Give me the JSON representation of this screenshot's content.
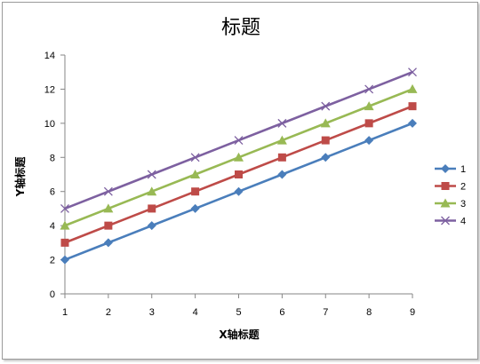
{
  "chart_data": {
    "type": "line",
    "title": "标题",
    "xlabel": "X轴标题",
    "ylabel": "Y轴标题",
    "x": [
      1,
      2,
      3,
      4,
      5,
      6,
      7,
      8,
      9
    ],
    "ylim": [
      0,
      14
    ],
    "yticks": [
      0,
      2,
      4,
      6,
      8,
      10,
      12,
      14
    ],
    "grid": false,
    "legend_position": "right",
    "series": [
      {
        "name": "1",
        "values": [
          2,
          3,
          4,
          5,
          6,
          7,
          8,
          9,
          10
        ],
        "color": "#4a7ebb",
        "marker": "diamond"
      },
      {
        "name": "2",
        "values": [
          3,
          4,
          5,
          6,
          7,
          8,
          9,
          10,
          11
        ],
        "color": "#be4b48",
        "marker": "square"
      },
      {
        "name": "3",
        "values": [
          4,
          5,
          6,
          7,
          8,
          9,
          10,
          11,
          12
        ],
        "color": "#98b954",
        "marker": "triangle"
      },
      {
        "name": "4",
        "values": [
          5,
          6,
          7,
          8,
          9,
          10,
          11,
          12,
          13
        ],
        "color": "#7d60a0",
        "marker": "x"
      }
    ]
  }
}
